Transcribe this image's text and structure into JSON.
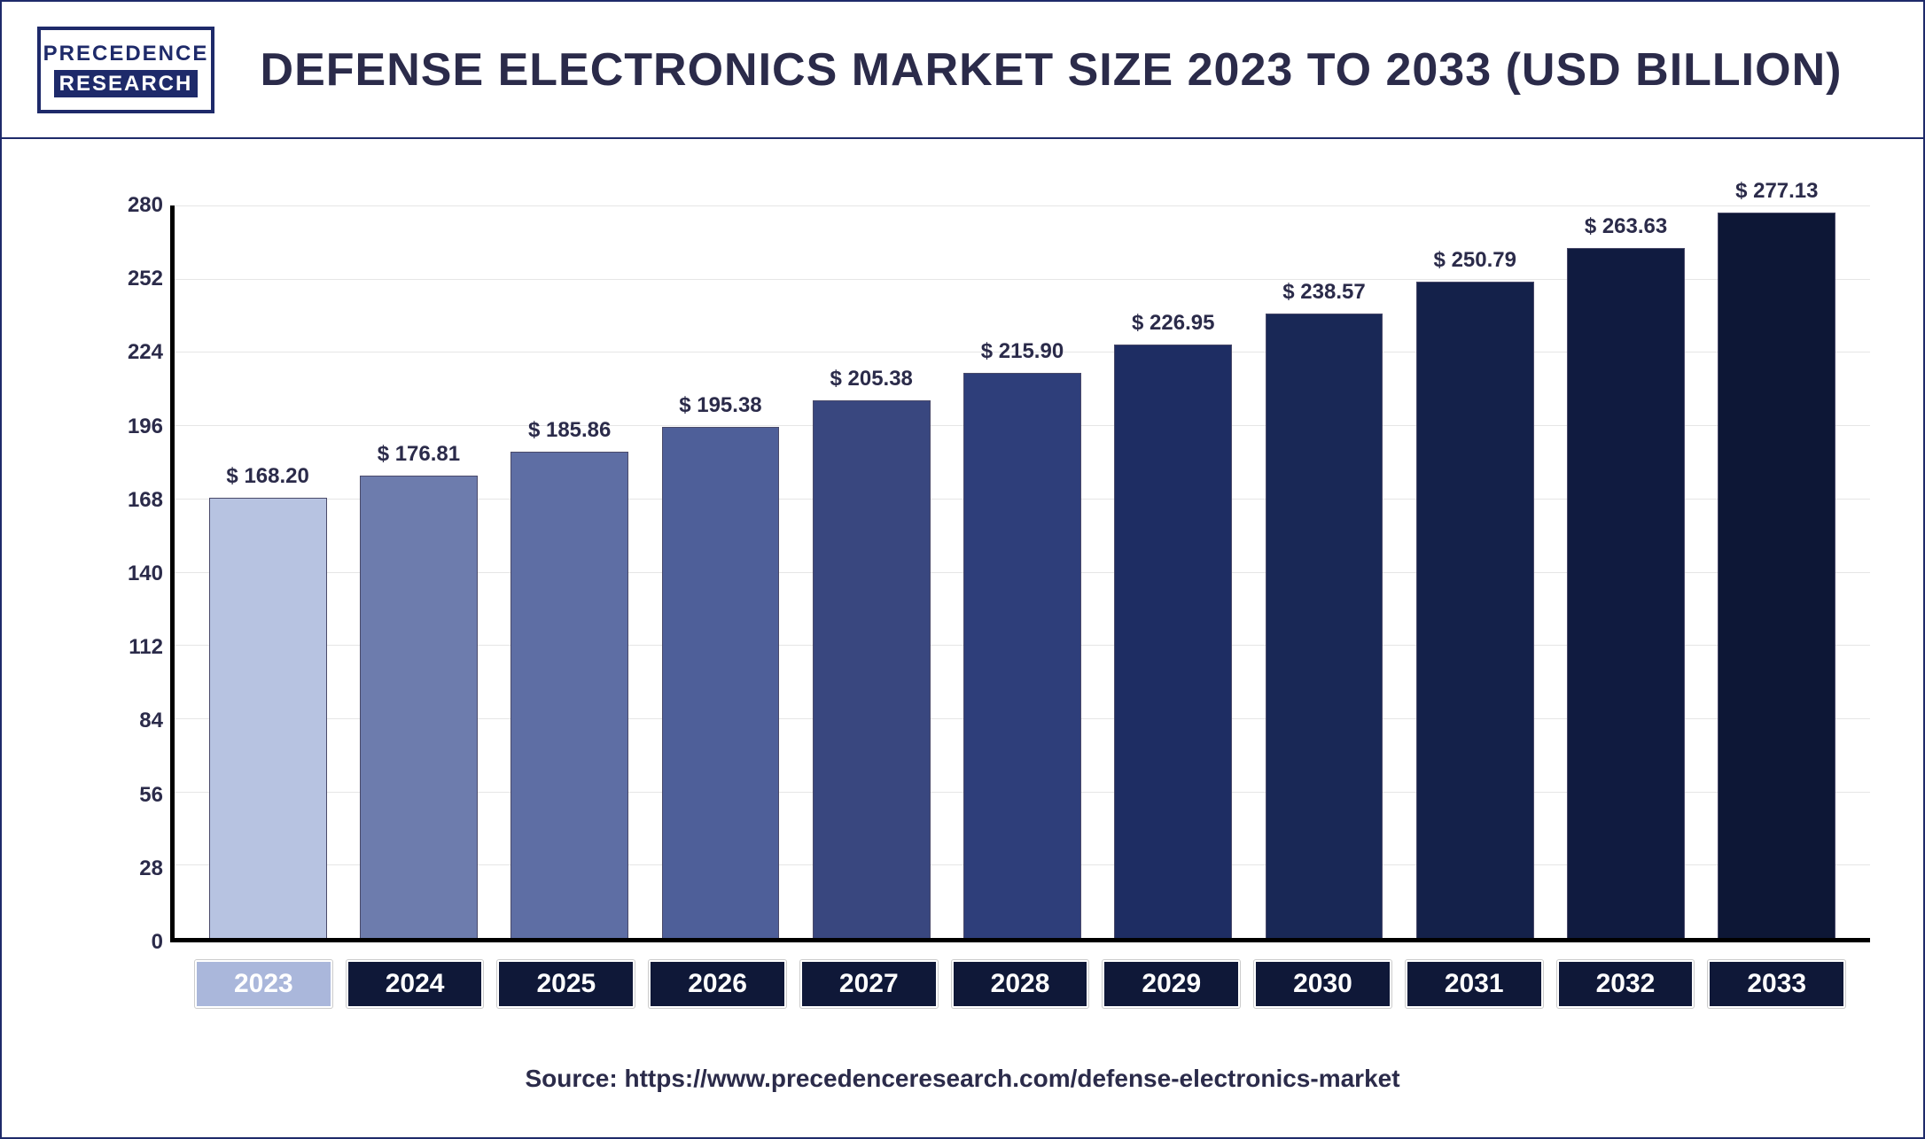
{
  "logo": {
    "line1": "PRECEDENCE",
    "line2": "RESEARCH"
  },
  "title": "DEFENSE ELECTRONICS MARKET SIZE 2023 TO 2033 (USD BILLION)",
  "chart": {
    "type": "bar",
    "ylim": [
      0,
      280
    ],
    "yticks": [
      0,
      28,
      56,
      84,
      112,
      140,
      168,
      196,
      224,
      252,
      280
    ],
    "ytick_labels": [
      "0",
      "28",
      "56",
      "84",
      "112",
      "140",
      "168",
      "196",
      "224",
      "252",
      "280"
    ],
    "grid_color": "#e6e6e6",
    "axis_color": "#000000",
    "background_color": "#ffffff",
    "bar_width_ratio": 0.78,
    "data_label_fontsize": 24,
    "data_label_fontweight": 800,
    "tick_fontsize": 24,
    "categories": [
      "2023",
      "2024",
      "2025",
      "2026",
      "2027",
      "2028",
      "2029",
      "2030",
      "2031",
      "2032",
      "2033"
    ],
    "values": [
      168.2,
      176.81,
      185.86,
      195.38,
      205.38,
      215.9,
      226.95,
      238.57,
      250.79,
      263.63,
      277.13
    ],
    "value_labels": [
      "$ 168.20",
      "$ 176.81",
      "$ 185.86",
      "$ 195.38",
      "$ 205.38",
      "$ 215.90",
      "$ 226.95",
      "$ 238.57",
      "$ 250.79",
      "$ 263.63",
      "$ 277.13"
    ],
    "bar_colors": [
      "#b7c3e1",
      "#6d7cad",
      "#5e6ea4",
      "#4e5f99",
      "#39477f",
      "#2e3e7a",
      "#1e2d63",
      "#192856",
      "#14214a",
      "#101b40",
      "#0d1736"
    ],
    "x_pill_bg_default": "#0f1838",
    "x_pill_bg_first": "#aab7db",
    "x_pill_text_color": "#ffffff",
    "x_pill_fontsize": 30
  },
  "source": "Source: https://www.precedenceresearch.com/defense-electronics-market"
}
